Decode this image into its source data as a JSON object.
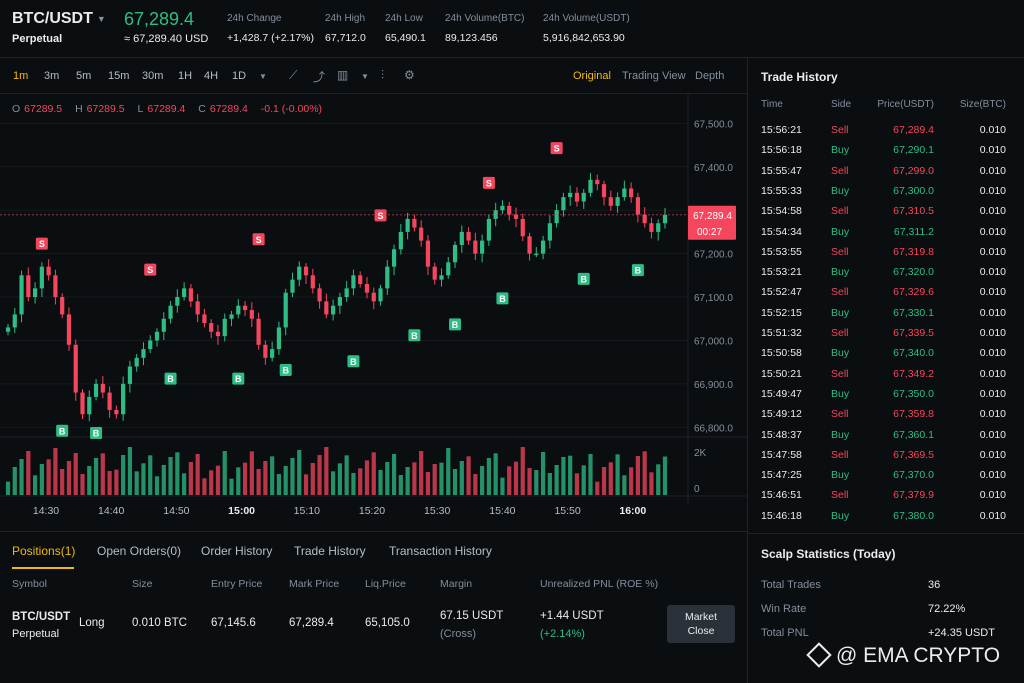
{
  "header": {
    "symbol": "BTC/USDT",
    "contract_type": "Perpetual",
    "last_price": "67,289.4",
    "last_price_usd": "≈ 67,289.40 USD",
    "stats": [
      {
        "label": "24h Change",
        "value": "+1,428.7 (+2.17%)",
        "color": "#2ebd85"
      },
      {
        "label": "24h High",
        "value": "67,712.0"
      },
      {
        "label": "24h Low",
        "value": "65,490.1"
      },
      {
        "label": "24h Volume(BTC)",
        "value": "89,123.456"
      },
      {
        "label": "24h Volume(USDT)",
        "value": "5,916,842,653.90"
      }
    ]
  },
  "toolbar": {
    "timeframes": [
      "1m",
      "3m",
      "5m",
      "15m",
      "30m",
      "1H",
      "4H",
      "1D"
    ],
    "active_timeframe": "1m",
    "views": [
      "Original",
      "Trading View",
      "Depth"
    ],
    "active_view": "Original"
  },
  "ohlc": {
    "o_label": "O",
    "o": "67289.5",
    "h_label": "H",
    "h": "67289.5",
    "l_label": "L",
    "l": "67289.4",
    "c_label": "C",
    "c": "67289.4",
    "change": "-0.1 (-0.00%)"
  },
  "chart_data": {
    "type": "candlestick",
    "y_ticks": [
      "67,500.0",
      "67,400.0",
      "67,300.0",
      "67,200.0",
      "67,100.0",
      "67,000.0",
      "66,900.0",
      "66,800.0"
    ],
    "y_tick_values": [
      67500,
      67400,
      67300,
      67200,
      67100,
      67000,
      66900,
      66800
    ],
    "ylim": [
      66750,
      67540
    ],
    "x_ticks": [
      "14:30",
      "14:40",
      "14:50",
      "15:00",
      "15:10",
      "15:20",
      "15:30",
      "15:40",
      "15:50",
      "16:00"
    ],
    "x_tick_bold": [
      "15:00",
      "16:00"
    ],
    "volume_ticks": [
      "2K",
      "0"
    ],
    "current_price_label": "67,289.4",
    "countdown_label": "00:27",
    "current_price": 67289.4,
    "closes": [
      67030,
      67060,
      67150,
      67100,
      67120,
      67170,
      67150,
      67100,
      67060,
      66990,
      66880,
      66830,
      66870,
      66900,
      66880,
      66840,
      66830,
      66900,
      66940,
      66960,
      66980,
      67000,
      67020,
      67050,
      67080,
      67100,
      67120,
      67090,
      67060,
      67040,
      67020,
      67010,
      67050,
      67060,
      67080,
      67070,
      67050,
      66990,
      66960,
      66980,
      67030,
      67110,
      67140,
      67170,
      67150,
      67120,
      67090,
      67060,
      67080,
      67100,
      67120,
      67150,
      67130,
      67110,
      67090,
      67120,
      67170,
      67210,
      67250,
      67280,
      67260,
      67230,
      67170,
      67140,
      67150,
      67180,
      67220,
      67250,
      67230,
      67200,
      67230,
      67280,
      67300,
      67310,
      67290,
      67280,
      67240,
      67200,
      67200,
      67230,
      67270,
      67300,
      67330,
      67340,
      67320,
      67340,
      67370,
      67360,
      67330,
      67310,
      67330,
      67350,
      67330,
      67290,
      67270,
      67250,
      67270,
      67289.4
    ],
    "buy_markers": [
      {
        "i": 8,
        "price": 66815
      },
      {
        "i": 13,
        "price": 66810
      },
      {
        "i": 24,
        "price": 66935
      },
      {
        "i": 34,
        "price": 66935
      },
      {
        "i": 41,
        "price": 66955
      },
      {
        "i": 51,
        "price": 66975
      },
      {
        "i": 60,
        "price": 67035
      },
      {
        "i": 66,
        "price": 67060
      },
      {
        "i": 73,
        "price": 67120
      },
      {
        "i": 85,
        "price": 67165
      },
      {
        "i": 93,
        "price": 67185
      }
    ],
    "sell_markers": [
      {
        "i": 5,
        "price": 67200
      },
      {
        "i": 21,
        "price": 67140
      },
      {
        "i": 37,
        "price": 67210
      },
      {
        "i": 55,
        "price": 67265
      },
      {
        "i": 71,
        "price": 67340
      },
      {
        "i": 81,
        "price": 67420
      }
    ]
  },
  "positions": {
    "tabs": [
      "Positions(1)",
      "Open Orders(0)",
      "Order History",
      "Trade History",
      "Transaction History"
    ],
    "active_tab": "Positions(1)",
    "columns": [
      "Symbol",
      "Size",
      "Entry Price",
      "Mark Price",
      "Liq.Price",
      "Margin",
      "Unrealized PNL (ROE %)"
    ],
    "row": {
      "symbol": "BTC/USDT",
      "contract": "Perpetual",
      "side": "Long",
      "size": "0.010 BTC",
      "entry_price": "67,145.6",
      "mark_price": "67,289.4",
      "liq_price": "65,105.0",
      "margin": "67.15 USDT",
      "margin_mode": "(Cross)",
      "pnl": "+1.44 USDT",
      "roe": "(+2.14%)"
    },
    "close_button_line1": "Market",
    "close_button_line2": "Close"
  },
  "trade_history": {
    "title": "Trade History",
    "columns": [
      "Time",
      "Side",
      "Price(USDT)",
      "Size(BTC)"
    ],
    "rows": [
      {
        "time": "15:56:21",
        "side": "Sell",
        "price": "67,289.4",
        "size": "0.010"
      },
      {
        "time": "15:56:18",
        "side": "Buy",
        "price": "67,290.1",
        "size": "0.010"
      },
      {
        "time": "15:55:47",
        "side": "Sell",
        "price": "67,299.0",
        "size": "0.010"
      },
      {
        "time": "15:55:33",
        "side": "Buy",
        "price": "67,300.0",
        "size": "0.010"
      },
      {
        "time": "15:54:58",
        "side": "Sell",
        "price": "67,310.5",
        "size": "0.010"
      },
      {
        "time": "15:54:34",
        "side": "Buy",
        "price": "67,311.2",
        "size": "0.010"
      },
      {
        "time": "15:53:55",
        "side": "Sell",
        "price": "67,319.8",
        "size": "0.010"
      },
      {
        "time": "15:53:21",
        "side": "Buy",
        "price": "67,320.0",
        "size": "0.010"
      },
      {
        "time": "15:52:47",
        "side": "Sell",
        "price": "67,329.6",
        "size": "0.010"
      },
      {
        "time": "15:52:15",
        "side": "Buy",
        "price": "67,330.1",
        "size": "0.010"
      },
      {
        "time": "15:51:32",
        "side": "Sell",
        "price": "67,339.5",
        "size": "0.010"
      },
      {
        "time": "15:50:58",
        "side": "Buy",
        "price": "67,340.0",
        "size": "0.010"
      },
      {
        "time": "15:50:21",
        "side": "Sell",
        "price": "67,349.2",
        "size": "0.010"
      },
      {
        "time": "15:49:47",
        "side": "Buy",
        "price": "67,350.0",
        "size": "0.010"
      },
      {
        "time": "15:49:12",
        "side": "Sell",
        "price": "67,359.8",
        "size": "0.010"
      },
      {
        "time": "15:48:37",
        "side": "Buy",
        "price": "67,360.1",
        "size": "0.010"
      },
      {
        "time": "15:47:58",
        "side": "Sell",
        "price": "67,369.5",
        "size": "0.010"
      },
      {
        "time": "15:47:25",
        "side": "Buy",
        "price": "67,370.0",
        "size": "0.010"
      },
      {
        "time": "15:46:51",
        "side": "Sell",
        "price": "67,379.9",
        "size": "0.010"
      },
      {
        "time": "15:46:18",
        "side": "Buy",
        "price": "67,380.0",
        "size": "0.010"
      }
    ]
  },
  "scalp_stats": {
    "title": "Scalp Statistics (Today)",
    "total_trades_label": "Total Trades",
    "total_trades": "36",
    "win_rate_label": "Win Rate",
    "win_rate": "72.22%",
    "total_pnl_label": "Total PNL",
    "total_pnl": "+24.35 USDT"
  },
  "watermark": "@ EMA CRYPTO",
  "colors": {
    "up": "#2ebd85",
    "down": "#f6465d",
    "accent": "#f0b90b",
    "bg": "#0b0e11"
  }
}
